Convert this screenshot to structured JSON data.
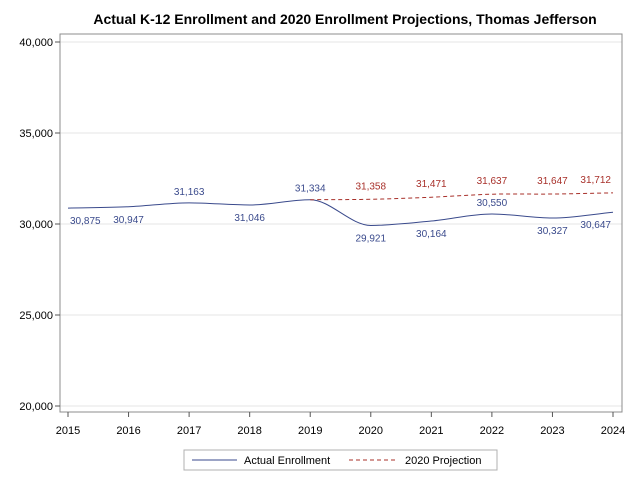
{
  "chart_data": {
    "type": "line",
    "title": "Actual K-12 Enrollment and 2020 Enrollment Projections, Thomas Jefferson",
    "xlabel": "",
    "ylabel": "",
    "x_ticks": [
      "2015",
      "2016",
      "2017",
      "2018",
      "2019",
      "2020",
      "2021",
      "2022",
      "2023",
      "2024"
    ],
    "y_ticks": [
      "20,000",
      "25,000",
      "30,000",
      "35,000",
      "40,000"
    ],
    "xlim": [
      2015,
      2024
    ],
    "ylim": [
      20000,
      40000
    ],
    "grid": true,
    "legend_position": "bottom-center",
    "series": [
      {
        "name": "Actual Enrollment",
        "style": "solid",
        "color": "#3a4a8c",
        "x": [
          2015,
          2016,
          2017,
          2018,
          2019,
          2020,
          2021,
          2022,
          2023,
          2024
        ],
        "values": [
          30875,
          30947,
          31163,
          31046,
          31334,
          29921,
          30164,
          30550,
          30327,
          30647
        ],
        "labels": [
          "30,875",
          "30,947",
          "31,163",
          "31,046",
          "31,334",
          "29,921",
          "30,164",
          "30,550",
          "30,327",
          "30,647"
        ]
      },
      {
        "name": "2020 Projection",
        "style": "dashed",
        "color": "#a8302a",
        "x": [
          2019,
          2020,
          2021,
          2022,
          2023,
          2024
        ],
        "values": [
          31334,
          31358,
          31471,
          31637,
          31647,
          31712
        ],
        "labels": [
          "",
          "31,358",
          "31,471",
          "31,637",
          "31,647",
          "31,712"
        ]
      }
    ]
  }
}
